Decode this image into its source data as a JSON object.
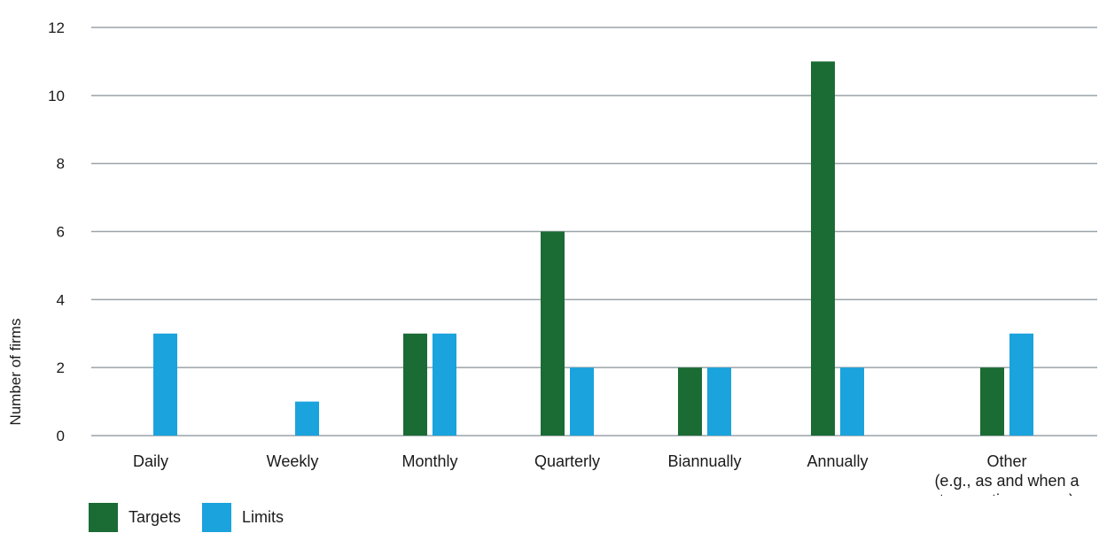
{
  "chart_data": {
    "type": "bar",
    "categories": [
      "Daily",
      "Weekly",
      "Monthly",
      "Quarterly",
      "Biannually",
      "Annually",
      "Other\n(e.g., as and when a\ntransaction occurs)"
    ],
    "series": [
      {
        "name": "Targets",
        "color": "#1b6b34",
        "values": [
          0,
          0,
          3,
          6,
          2,
          11,
          2
        ]
      },
      {
        "name": "Limits",
        "color": "#1aa3dc",
        "values": [
          3,
          1,
          3,
          2,
          2,
          2,
          3
        ]
      }
    ],
    "ylabel": "Number of firms",
    "xlabel": "",
    "ylim": [
      0,
      12
    ],
    "yticks": [
      0,
      2,
      4,
      6,
      8,
      10,
      12
    ],
    "grid": true,
    "legend_position": "bottom-left"
  }
}
